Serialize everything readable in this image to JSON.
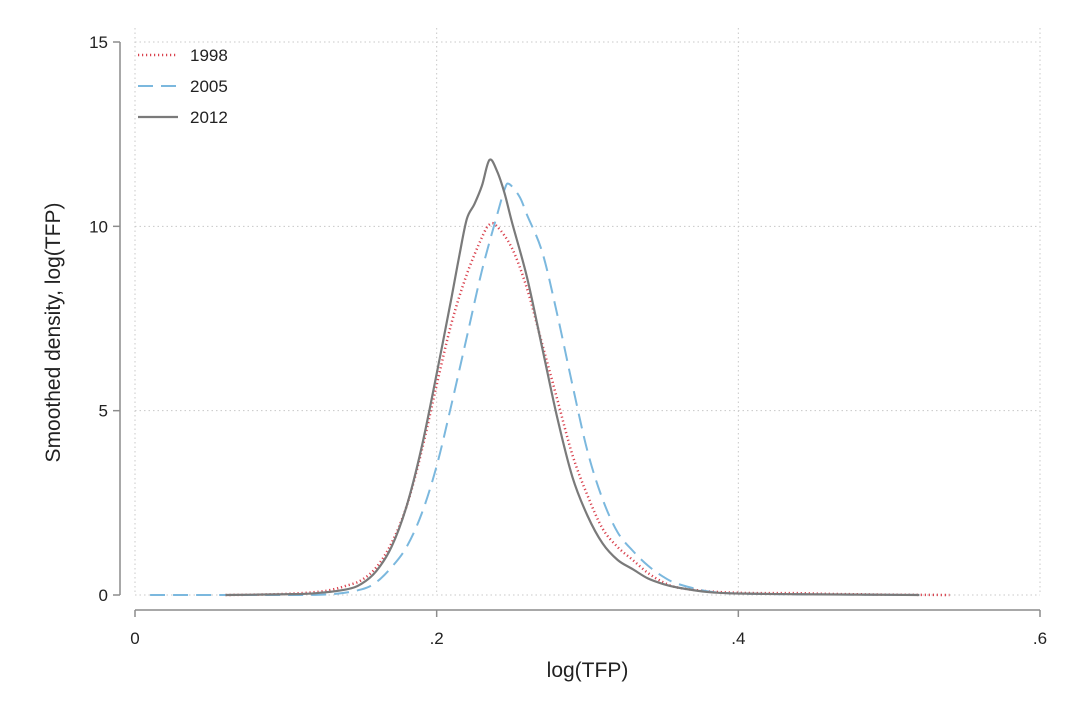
{
  "chart_data": {
    "type": "line",
    "title": "",
    "xlabel": "log(TFP)",
    "ylabel": "Smoothed density, log(TFP)",
    "xlim": [
      0,
      0.6
    ],
    "ylim": [
      0,
      15
    ],
    "x_ticks": [
      {
        "value": 0,
        "label": "0"
      },
      {
        "value": 0.2,
        "label": ".2"
      },
      {
        "value": 0.4,
        "label": ".4"
      },
      {
        "value": 0.6,
        "label": ".6"
      }
    ],
    "y_ticks": [
      {
        "value": 0,
        "label": "0"
      },
      {
        "value": 5,
        "label": "5"
      },
      {
        "value": 10,
        "label": "10"
      },
      {
        "value": 15,
        "label": "15"
      }
    ],
    "grid": true,
    "legend_position": "top-left",
    "series": [
      {
        "name": "1998",
        "color": "#d9434f",
        "style": "dotted",
        "points": [
          [
            0.06,
            0.0
          ],
          [
            0.08,
            0.01
          ],
          [
            0.1,
            0.03
          ],
          [
            0.12,
            0.08
          ],
          [
            0.13,
            0.14
          ],
          [
            0.14,
            0.25
          ],
          [
            0.15,
            0.4
          ],
          [
            0.16,
            0.75
          ],
          [
            0.17,
            1.4
          ],
          [
            0.18,
            2.4
          ],
          [
            0.19,
            3.9
          ],
          [
            0.2,
            5.7
          ],
          [
            0.21,
            7.4
          ],
          [
            0.22,
            8.7
          ],
          [
            0.23,
            9.7
          ],
          [
            0.235,
            10.05
          ],
          [
            0.24,
            10.0
          ],
          [
            0.25,
            9.4
          ],
          [
            0.26,
            8.3
          ],
          [
            0.27,
            6.8
          ],
          [
            0.28,
            5.3
          ],
          [
            0.29,
            3.8
          ],
          [
            0.3,
            2.7
          ],
          [
            0.31,
            1.8
          ],
          [
            0.32,
            1.3
          ],
          [
            0.33,
            0.95
          ],
          [
            0.34,
            0.6
          ],
          [
            0.35,
            0.35
          ],
          [
            0.36,
            0.2
          ],
          [
            0.38,
            0.1
          ],
          [
            0.4,
            0.06
          ],
          [
            0.42,
            0.05
          ],
          [
            0.44,
            0.05
          ],
          [
            0.46,
            0.03
          ],
          [
            0.48,
            0.02
          ],
          [
            0.5,
            0.01
          ],
          [
            0.54,
            0.0
          ]
        ]
      },
      {
        "name": "2005",
        "color": "#7bb8de",
        "style": "dashed",
        "points": [
          [
            0.01,
            0.0
          ],
          [
            0.06,
            0.0
          ],
          [
            0.1,
            0.0
          ],
          [
            0.13,
            0.02
          ],
          [
            0.15,
            0.15
          ],
          [
            0.16,
            0.35
          ],
          [
            0.17,
            0.75
          ],
          [
            0.18,
            1.3
          ],
          [
            0.19,
            2.2
          ],
          [
            0.2,
            3.5
          ],
          [
            0.21,
            5.2
          ],
          [
            0.22,
            7.0
          ],
          [
            0.23,
            8.8
          ],
          [
            0.24,
            10.3
          ],
          [
            0.245,
            11.0
          ],
          [
            0.248,
            11.15
          ],
          [
            0.255,
            10.8
          ],
          [
            0.26,
            10.3
          ],
          [
            0.27,
            9.3
          ],
          [
            0.28,
            7.6
          ],
          [
            0.29,
            5.7
          ],
          [
            0.3,
            3.9
          ],
          [
            0.31,
            2.6
          ],
          [
            0.32,
            1.7
          ],
          [
            0.33,
            1.2
          ],
          [
            0.34,
            0.8
          ],
          [
            0.35,
            0.5
          ],
          [
            0.36,
            0.3
          ],
          [
            0.38,
            0.1
          ],
          [
            0.4,
            0.04
          ],
          [
            0.44,
            0.02
          ],
          [
            0.48,
            0.01
          ],
          [
            0.52,
            0.0
          ]
        ]
      },
      {
        "name": "2012",
        "color": "#7a7a7a",
        "style": "solid",
        "points": [
          [
            0.06,
            0.0
          ],
          [
            0.1,
            0.02
          ],
          [
            0.12,
            0.05
          ],
          [
            0.14,
            0.15
          ],
          [
            0.15,
            0.3
          ],
          [
            0.16,
            0.65
          ],
          [
            0.17,
            1.3
          ],
          [
            0.18,
            2.4
          ],
          [
            0.19,
            4.0
          ],
          [
            0.2,
            6.0
          ],
          [
            0.21,
            8.1
          ],
          [
            0.215,
            9.2
          ],
          [
            0.22,
            10.2
          ],
          [
            0.225,
            10.6
          ],
          [
            0.23,
            11.1
          ],
          [
            0.235,
            11.8
          ],
          [
            0.24,
            11.5
          ],
          [
            0.245,
            10.9
          ],
          [
            0.25,
            10.1
          ],
          [
            0.26,
            8.6
          ],
          [
            0.27,
            6.7
          ],
          [
            0.28,
            4.8
          ],
          [
            0.29,
            3.2
          ],
          [
            0.3,
            2.15
          ],
          [
            0.31,
            1.4
          ],
          [
            0.32,
            0.95
          ],
          [
            0.33,
            0.7
          ],
          [
            0.34,
            0.45
          ],
          [
            0.35,
            0.3
          ],
          [
            0.36,
            0.2
          ],
          [
            0.38,
            0.08
          ],
          [
            0.4,
            0.04
          ],
          [
            0.44,
            0.02
          ],
          [
            0.48,
            0.01
          ],
          [
            0.52,
            0.0
          ]
        ]
      }
    ]
  }
}
